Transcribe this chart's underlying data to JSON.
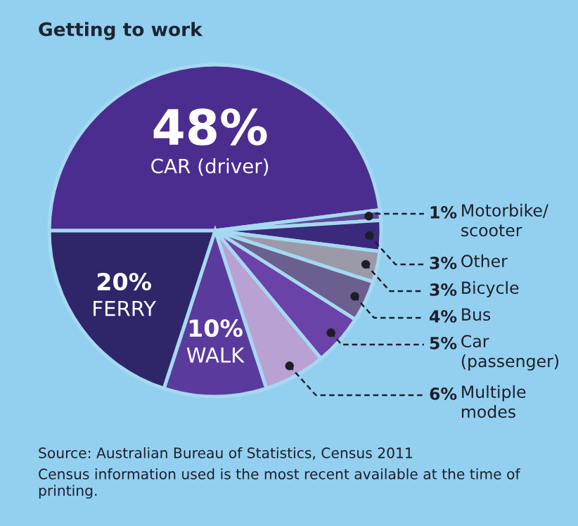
{
  "chart_data": {
    "type": "pie",
    "title": "Getting to work",
    "categories": [
      "CAR (driver)",
      "Motorbike/\nscooter",
      "Other",
      "Bicycle",
      "Bus",
      "Car\n(passenger)",
      "Multiple\nmodes",
      "WALK",
      "FERRY"
    ],
    "values": [
      48,
      1,
      3,
      3,
      4,
      5,
      6,
      10,
      20
    ],
    "colors": [
      "#4b2d8f",
      "#5e4c98",
      "#3b2a7c",
      "#9b9aa8",
      "#6b5f8f",
      "#6a42a8",
      "#b9a1d3",
      "#5b3a9e",
      "#2f2669"
    ],
    "value_labels": [
      "48%",
      "1%",
      "3%",
      "3%",
      "4%",
      "5%",
      "6%",
      "10%",
      "20%"
    ],
    "legend": false,
    "annotations": [
      "Source: Australian Bureau of Statistics, Census 2011",
      "Census information used is the most recent available at the time of printing."
    ]
  }
}
